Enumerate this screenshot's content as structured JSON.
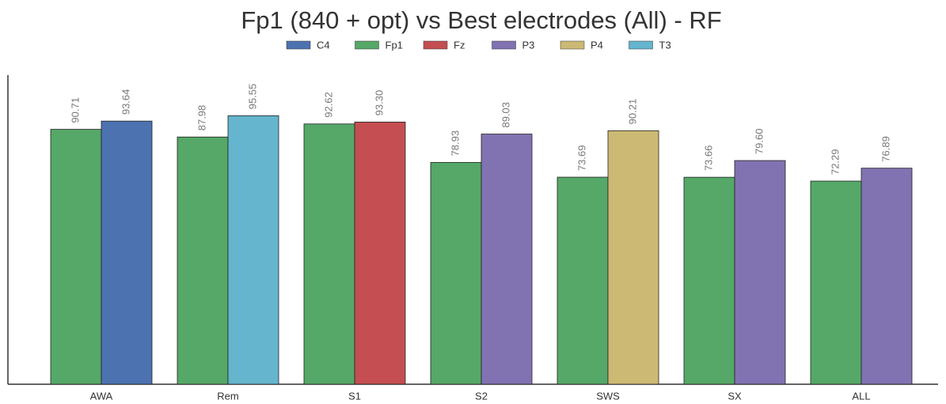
{
  "chart_data": {
    "type": "bar",
    "title": "Fp1 (840 + opt) vs Best electrodes (All) - RF",
    "categories": [
      "AWA",
      "Rem",
      "S1",
      "S2",
      "SWS",
      "SX",
      "ALL"
    ],
    "series": [
      {
        "name": "C4",
        "color": "#4c72b0",
        "values": [
          93.64,
          null,
          null,
          null,
          null,
          null,
          null
        ],
        "value_labels": [
          "93.64",
          null,
          null,
          null,
          null,
          null,
          null
        ]
      },
      {
        "name": "Fp1",
        "color": "#55a868",
        "values": [
          90.71,
          87.98,
          92.62,
          78.93,
          73.69,
          73.66,
          72.29
        ],
        "value_labels": [
          "90.71",
          "87.98",
          "92.62",
          "78.93",
          "73.69",
          "73.66",
          "72.29"
        ]
      },
      {
        "name": "Fz",
        "color": "#c44e52",
        "values": [
          null,
          null,
          93.3,
          null,
          null,
          null,
          null
        ],
        "value_labels": [
          null,
          null,
          "93.30",
          null,
          null,
          null,
          null
        ]
      },
      {
        "name": "P3",
        "color": "#8172b2",
        "values": [
          null,
          null,
          null,
          89.03,
          null,
          79.6,
          76.89
        ],
        "value_labels": [
          null,
          null,
          null,
          "89.03",
          null,
          "79.60",
          "76.89"
        ]
      },
      {
        "name": "P4",
        "color": "#ccb974",
        "values": [
          null,
          null,
          null,
          null,
          90.21,
          null,
          null
        ],
        "value_labels": [
          null,
          null,
          null,
          null,
          "90.21",
          null,
          null
        ]
      },
      {
        "name": "T3",
        "color": "#64b5cd",
        "values": [
          null,
          95.55,
          null,
          null,
          null,
          null,
          null
        ],
        "value_labels": [
          null,
          "95.55",
          null,
          null,
          null,
          null,
          null
        ]
      }
    ],
    "ylim": [
      0,
      110
    ]
  }
}
